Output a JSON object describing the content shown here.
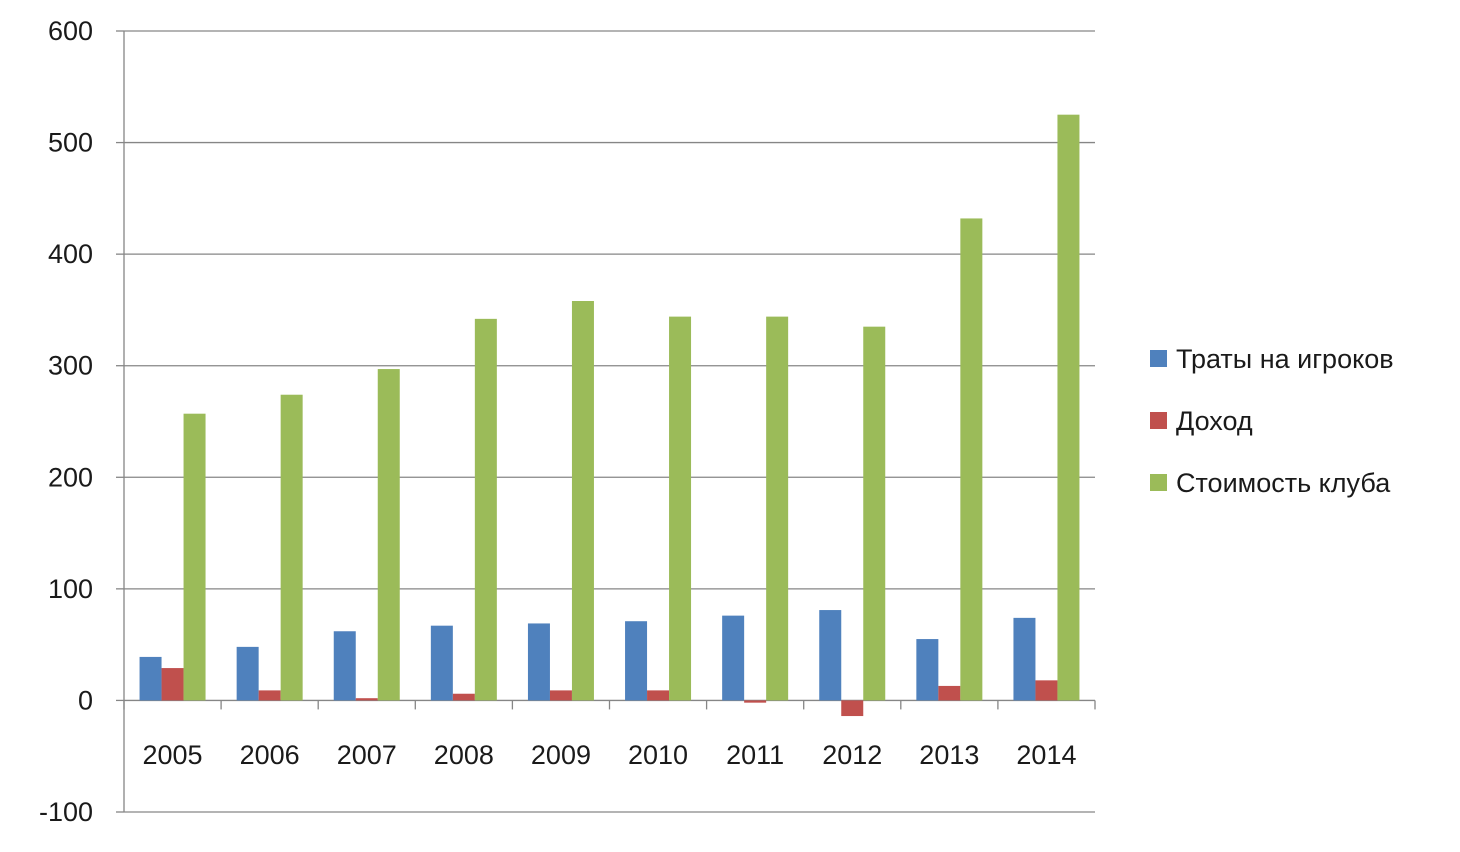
{
  "chart_data": {
    "type": "bar",
    "title": "",
    "xlabel": "",
    "ylabel": "",
    "categories": [
      "2005",
      "2006",
      "2007",
      "2008",
      "2009",
      "2010",
      "2011",
      "2012",
      "2013",
      "2014"
    ],
    "series": [
      {
        "name": "Траты на игроков",
        "color": "#4f81bd",
        "values": [
          39,
          48,
          62,
          67,
          69,
          71,
          76,
          81,
          55,
          74
        ]
      },
      {
        "name": "Доход",
        "color": "#c0504d",
        "values": [
          29,
          9,
          2,
          6,
          9,
          9,
          -2,
          -14,
          13,
          18
        ]
      },
      {
        "name": "Стоимость клуба",
        "color": "#9bbb59",
        "values": [
          257,
          274,
          297,
          342,
          358,
          344,
          344,
          335,
          432,
          525
        ]
      }
    ],
    "ylim": [
      -100,
      600
    ],
    "yticks": [
      -100,
      0,
      100,
      200,
      300,
      400,
      500,
      600
    ],
    "grid": true,
    "legend": "right"
  }
}
